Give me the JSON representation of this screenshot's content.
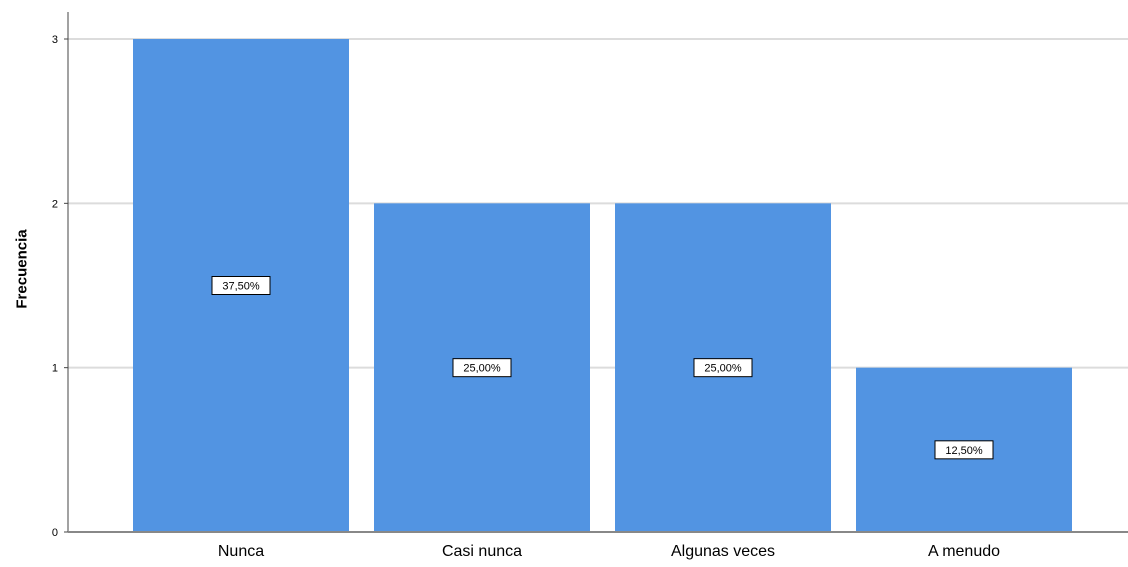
{
  "chart_data": {
    "type": "bar",
    "title": "",
    "xlabel": "",
    "ylabel": "Frecuencia",
    "categories": [
      "Nunca",
      "Casi nunca",
      "Algunas veces",
      "A menudo"
    ],
    "values": [
      3,
      2,
      2,
      1
    ],
    "data_labels": [
      "37,50%",
      "25,00%",
      "25,00%",
      "12,50%"
    ],
    "yticks": [
      "0",
      "1",
      "2",
      "3"
    ],
    "ylim": [
      0,
      3
    ],
    "grid": true,
    "bar_color": "#5294e2",
    "grid_color": "#dcdcdc"
  }
}
